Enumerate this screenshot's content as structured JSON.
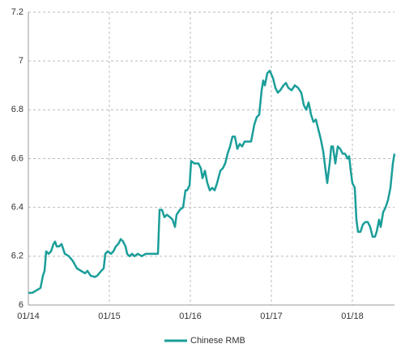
{
  "chart_data": {
    "type": "line",
    "x": [
      2014.0,
      2014.05,
      2014.1,
      2014.15,
      2014.18,
      2014.2,
      2014.22,
      2014.25,
      2014.28,
      2014.31,
      2014.33,
      2014.35,
      2014.38,
      2014.41,
      2014.43,
      2014.45,
      2014.5,
      2014.55,
      2014.6,
      2014.65,
      2014.7,
      2014.73,
      2014.77,
      2014.82,
      2014.85,
      2014.9,
      2014.93,
      2014.95,
      2014.98,
      2015.02,
      2015.05,
      2015.08,
      2015.11,
      2015.14,
      2015.17,
      2015.2,
      2015.22,
      2015.25,
      2015.28,
      2015.31,
      2015.35,
      2015.4,
      2015.45,
      2015.5,
      2015.55,
      2015.6,
      2015.62,
      2015.65,
      2015.68,
      2015.71,
      2015.75,
      2015.78,
      2015.81,
      2015.83,
      2015.87,
      2015.91,
      2015.94,
      2015.96,
      2015.99,
      2016.01,
      2016.05,
      2016.1,
      2016.13,
      2016.15,
      2016.18,
      2016.21,
      2016.24,
      2016.27,
      2016.3,
      2016.33,
      2016.37,
      2016.4,
      2016.43,
      2016.46,
      2016.49,
      2016.52,
      2016.55,
      2016.58,
      2016.61,
      2016.64,
      2016.67,
      2016.7,
      2016.75,
      2016.79,
      2016.82,
      2016.85,
      2016.88,
      2016.9,
      2016.92,
      2016.95,
      2016.98,
      2017.02,
      2017.05,
      2017.08,
      2017.11,
      2017.15,
      2017.18,
      2017.21,
      2017.25,
      2017.29,
      2017.33,
      2017.37,
      2017.4,
      2017.43,
      2017.46,
      2017.49,
      2017.52,
      2017.55,
      2017.58,
      2017.61,
      2017.64,
      2017.67,
      2017.69,
      2017.72,
      2017.74,
      2017.76,
      2017.79,
      2017.82,
      2017.85,
      2017.88,
      2017.91,
      2017.94,
      2017.96,
      2017.98,
      2018.0,
      2018.03,
      2018.05,
      2018.07,
      2018.1,
      2018.13,
      2018.16,
      2018.19,
      2018.22,
      2018.25,
      2018.28,
      2018.3,
      2018.33,
      2018.35,
      2018.38,
      2018.41,
      2018.44,
      2018.47,
      2018.5,
      2018.52
    ],
    "series": [
      {
        "name": "Chinese RMB",
        "color": "#1a9e99",
        "values": [
          6.05,
          6.05,
          6.06,
          6.07,
          6.12,
          6.14,
          6.22,
          6.21,
          6.22,
          6.25,
          6.26,
          6.24,
          6.24,
          6.25,
          6.23,
          6.21,
          6.2,
          6.18,
          6.15,
          6.14,
          6.13,
          6.14,
          6.12,
          6.115,
          6.12,
          6.14,
          6.15,
          6.21,
          6.22,
          6.21,
          6.22,
          6.24,
          6.25,
          6.27,
          6.26,
          6.24,
          6.21,
          6.2,
          6.21,
          6.2,
          6.21,
          6.2,
          6.21,
          6.21,
          6.21,
          6.21,
          6.39,
          6.39,
          6.36,
          6.37,
          6.36,
          6.35,
          6.32,
          6.37,
          6.39,
          6.4,
          6.47,
          6.47,
          6.49,
          6.59,
          6.58,
          6.58,
          6.56,
          6.52,
          6.55,
          6.5,
          6.47,
          6.48,
          6.47,
          6.5,
          6.55,
          6.56,
          6.58,
          6.62,
          6.65,
          6.69,
          6.69,
          6.64,
          6.66,
          6.65,
          6.67,
          6.67,
          6.67,
          6.74,
          6.77,
          6.78,
          6.88,
          6.92,
          6.9,
          6.95,
          6.96,
          6.93,
          6.89,
          6.87,
          6.88,
          6.9,
          6.91,
          6.89,
          6.88,
          6.9,
          6.89,
          6.87,
          6.82,
          6.8,
          6.83,
          6.78,
          6.75,
          6.76,
          6.72,
          6.68,
          6.63,
          6.55,
          6.5,
          6.58,
          6.65,
          6.65,
          6.58,
          6.65,
          6.64,
          6.62,
          6.62,
          6.6,
          6.61,
          6.55,
          6.5,
          6.48,
          6.35,
          6.3,
          6.3,
          6.33,
          6.34,
          6.34,
          6.32,
          6.28,
          6.28,
          6.3,
          6.35,
          6.32,
          6.38,
          6.4,
          6.43,
          6.48,
          6.58,
          6.62
        ]
      }
    ],
    "xlim": [
      2014,
      2018.52
    ],
    "xticks": [
      {
        "value": 2014,
        "label": "01/14"
      },
      {
        "value": 2015,
        "label": "01/15"
      },
      {
        "value": 2016,
        "label": "01/16"
      },
      {
        "value": 2017,
        "label": "01/17"
      },
      {
        "value": 2018,
        "label": "01/18"
      }
    ],
    "ylim": [
      6,
      7.2
    ],
    "yticks": [
      6,
      6.2,
      6.4,
      6.6,
      6.8,
      7,
      7.2
    ],
    "grid": true,
    "legend": "bottom"
  }
}
